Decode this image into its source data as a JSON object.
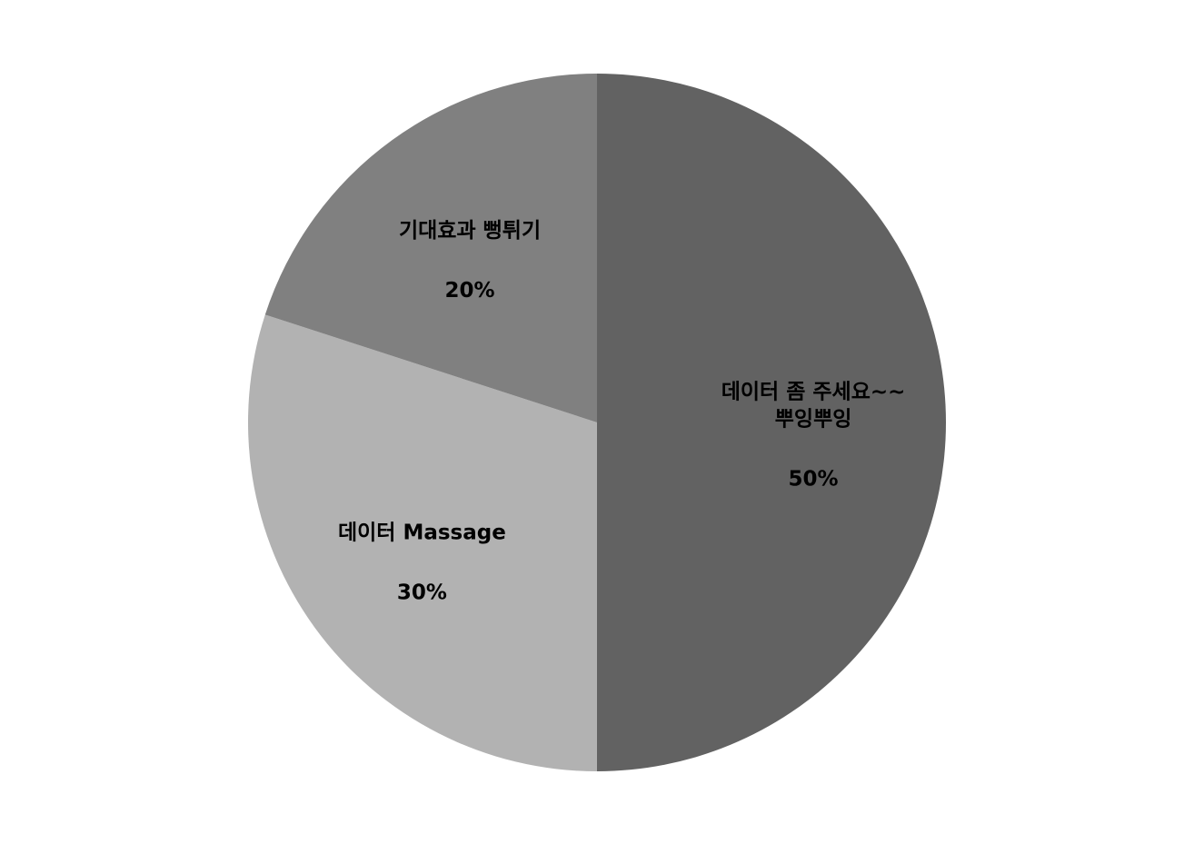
{
  "chart_data": {
    "type": "pie",
    "title": "",
    "start_angle_deg": 0,
    "direction": "clockwise",
    "legend": "none",
    "slices": [
      {
        "label_lines": [
          "데이터 좀 주세요~~",
          "뿌잉뿌잉"
        ],
        "value": 50,
        "value_label": "50%",
        "color": "#626262"
      },
      {
        "label_lines": [
          "데이터 Massage"
        ],
        "value": 30,
        "value_label": "30%",
        "color": "#b2b2b2"
      },
      {
        "label_lines": [
          "기대효과 뻥튀기"
        ],
        "value": 20,
        "value_label": "20%",
        "color": "#808080"
      }
    ]
  }
}
